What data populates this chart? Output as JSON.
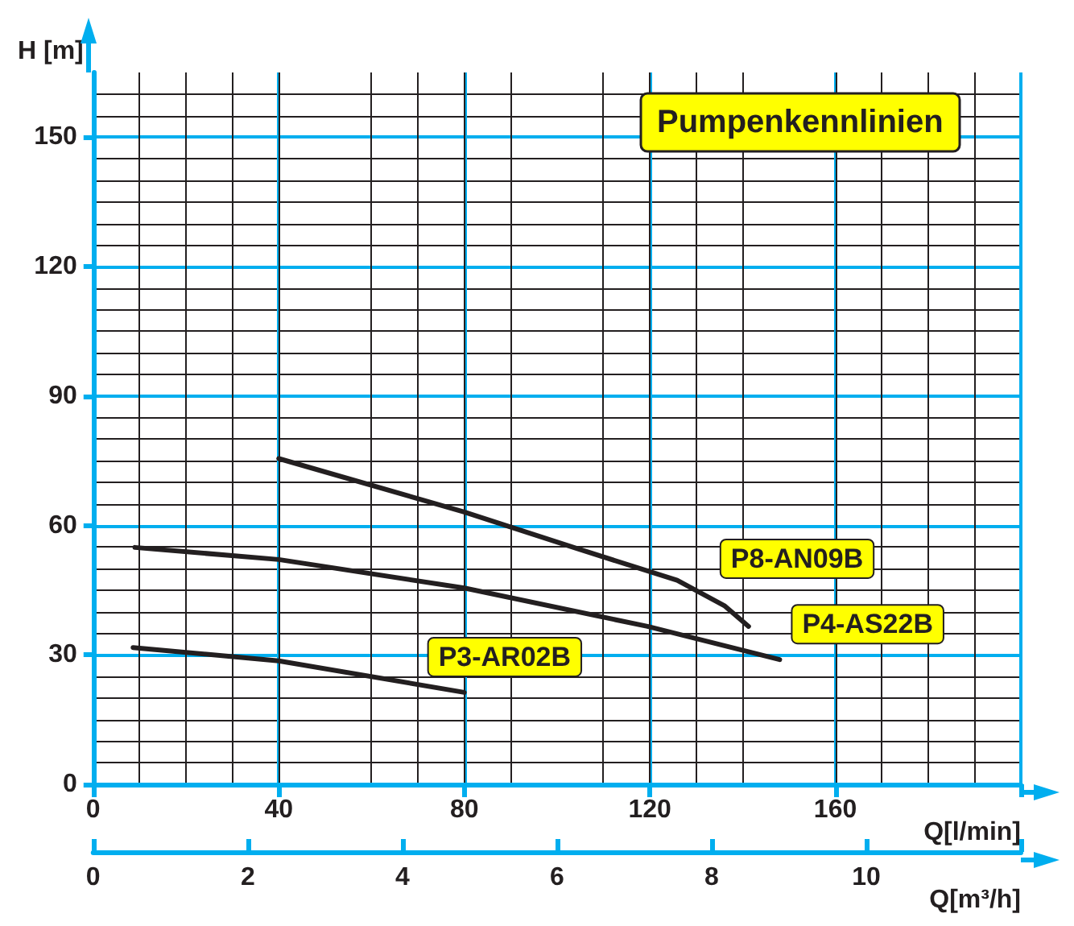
{
  "chart_data": {
    "type": "line",
    "title": "Pumpenkennlinien",
    "xlabel": "Q[l/min]",
    "ylabel": "H [m]",
    "x2label": "Q[m³/h]",
    "xlim": [
      0,
      200
    ],
    "xticks": [
      0,
      40,
      80,
      120,
      160,
      {
        "value": 200,
        "label": null
      }
    ],
    "x2lim": [
      0,
      12
    ],
    "x2ticks": [
      0,
      2,
      4,
      6,
      8,
      10,
      {
        "value": 12,
        "label": null
      }
    ],
    "ylim": [
      0,
      165
    ],
    "yticks": [
      0,
      30,
      60,
      90,
      120,
      150
    ],
    "grid": true,
    "legend": false,
    "marker": "none",
    "line_style": "solid",
    "series": [
      {
        "name": "P8-AN09B",
        "color": "#231f20",
        "x": [
          40,
          80,
          104.4,
          125.9,
          136.2,
          141.3
        ],
        "values": [
          75.5,
          63.1,
          54.6,
          47.3,
          41.3,
          36.6
        ]
      },
      {
        "name": "P4-AS22B",
        "color": "#231f20",
        "x": [
          9,
          40,
          80,
          119.5,
          148
        ],
        "values": [
          54.9,
          52.1,
          45.5,
          36.6,
          28.9
        ]
      },
      {
        "name": "P3-AR02B",
        "color": "#231f20",
        "x": [
          8.6,
          40,
          80
        ],
        "values": [
          31.7,
          28.6,
          21.3
        ]
      }
    ]
  }
}
